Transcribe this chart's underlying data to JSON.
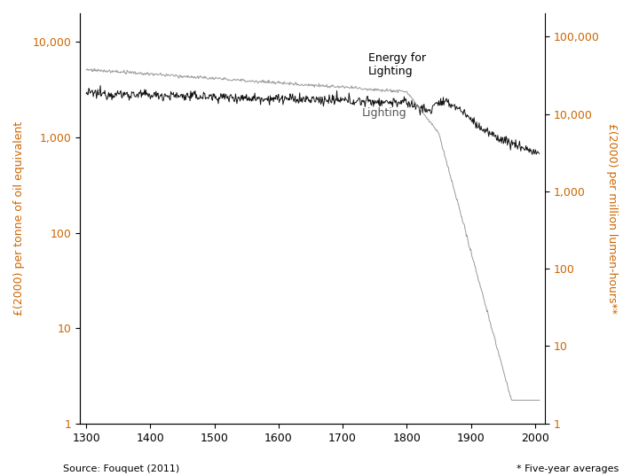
{
  "ylabel_left": "£(2000) per tonne of oil equivalent",
  "ylabel_right": "£(2000) per million lumen-hours**",
  "source_text": "Source: Fouquet (2011)",
  "note_text": "* Five-year averages",
  "energy_label": "Energy for\nLighting",
  "lighting_label": "Lighting",
  "energy_color": "#111111",
  "lighting_color": "#999999",
  "left_tick_color": "#cc6600",
  "right_tick_color": "#cc6600",
  "ylim_left": [
    1,
    20000
  ],
  "ylim_right": [
    1,
    200000
  ],
  "xlim": [
    1290,
    2015
  ],
  "xticks": [
    1300,
    1400,
    1500,
    1600,
    1700,
    1800,
    1900,
    2000
  ],
  "left_yticks": [
    1,
    10,
    100,
    1000,
    10000
  ],
  "right_yticks": [
    1,
    10,
    100,
    1000,
    10000,
    100000
  ],
  "left_yticklabels": [
    "1",
    "10",
    "100",
    "1,000",
    "10,000"
  ],
  "right_yticklabels": [
    "1",
    "10",
    "100",
    "1,000",
    "10,000",
    "100,000"
  ]
}
